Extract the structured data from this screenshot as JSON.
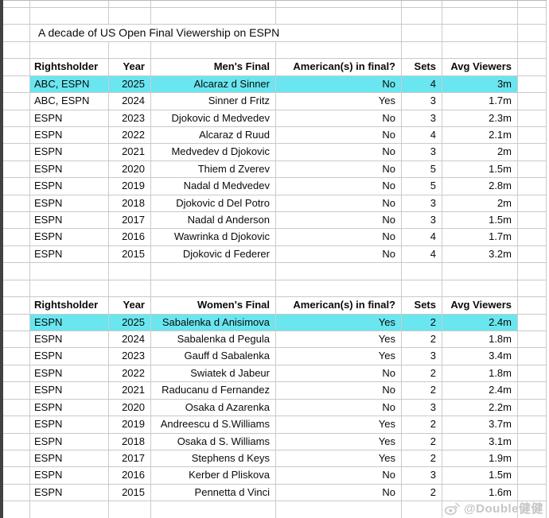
{
  "sheet": {
    "title": "A decade of US Open Final Viewership on ESPN"
  },
  "tables": [
    {
      "id": "mens-final-table",
      "headers": [
        "Rightsholder",
        "Year",
        "Men's Final",
        "American(s) in final?",
        "Sets",
        "Avg Viewers"
      ],
      "highlight_row_index": 0,
      "rows": [
        [
          "ABC, ESPN",
          "2025",
          "Alcaraz d Sinner",
          "No",
          "4",
          "3m"
        ],
        [
          "ABC, ESPN",
          "2024",
          "Sinner d Fritz",
          "Yes",
          "3",
          "1.7m"
        ],
        [
          "ESPN",
          "2023",
          "Djokovic d Medvedev",
          "No",
          "3",
          "2.3m"
        ],
        [
          "ESPN",
          "2022",
          "Alcaraz d Ruud",
          "No",
          "4",
          "2.1m"
        ],
        [
          "ESPN",
          "2021",
          "Medvedev d Djokovic",
          "No",
          "3",
          "2m"
        ],
        [
          "ESPN",
          "2020",
          "Thiem d Zverev",
          "No",
          "5",
          "1.5m"
        ],
        [
          "ESPN",
          "2019",
          "Nadal d Medvedev",
          "No",
          "5",
          "2.8m"
        ],
        [
          "ESPN",
          "2018",
          "Djokovic d Del Potro",
          "No",
          "3",
          "2m"
        ],
        [
          "ESPN",
          "2017",
          "Nadal d Anderson",
          "No",
          "3",
          "1.5m"
        ],
        [
          "ESPN",
          "2016",
          "Wawrinka d Djokovic",
          "No",
          "4",
          "1.7m"
        ],
        [
          "ESPN",
          "2015",
          "Djokovic d Federer",
          "No",
          "4",
          "3.2m"
        ]
      ]
    },
    {
      "id": "womens-final-table",
      "headers": [
        "Rightsholder",
        "Year",
        "Women's Final",
        "American(s) in final?",
        "Sets",
        "Avg Viewers"
      ],
      "highlight_row_index": 0,
      "rows": [
        [
          "ESPN",
          "2025",
          "Sabalenka d Anisimova",
          "Yes",
          "2",
          "2.4m"
        ],
        [
          "ESPN",
          "2024",
          "Sabalenka d Pegula",
          "Yes",
          "2",
          "1.8m"
        ],
        [
          "ESPN",
          "2023",
          "Gauff d Sabalenka",
          "Yes",
          "3",
          "3.4m"
        ],
        [
          "ESPN",
          "2022",
          "Swiatek d Jabeur",
          "No",
          "2",
          "1.8m"
        ],
        [
          "ESPN",
          "2021",
          "Raducanu d Fernandez",
          "No",
          "2",
          "2.4m"
        ],
        [
          "ESPN",
          "2020",
          "Osaka d Azarenka",
          "No",
          "3",
          "2.2m"
        ],
        [
          "ESPN",
          "2019",
          "Andreescu d S.Williams",
          "Yes",
          "2",
          "3.7m"
        ],
        [
          "ESPN",
          "2018",
          "Osaka d S. Williams",
          "Yes",
          "2",
          "3.1m"
        ],
        [
          "ESPN",
          "2017",
          "Stephens d Keys",
          "Yes",
          "2",
          "1.9m"
        ],
        [
          "ESPN",
          "2016",
          "Kerber d Pliskova",
          "No",
          "3",
          "1.5m"
        ],
        [
          "ESPN",
          "2015",
          "Pennetta d Vinci",
          "No",
          "2",
          "1.6m"
        ]
      ]
    }
  ],
  "watermark": {
    "text": "@Double健健",
    "icon": "weibo-icon"
  },
  "colors": {
    "highlight_cyan": "#69e6ef",
    "gridline": "#c9c9c9",
    "left_edge": "#414141",
    "watermark_gray": "#c6c6c6"
  }
}
